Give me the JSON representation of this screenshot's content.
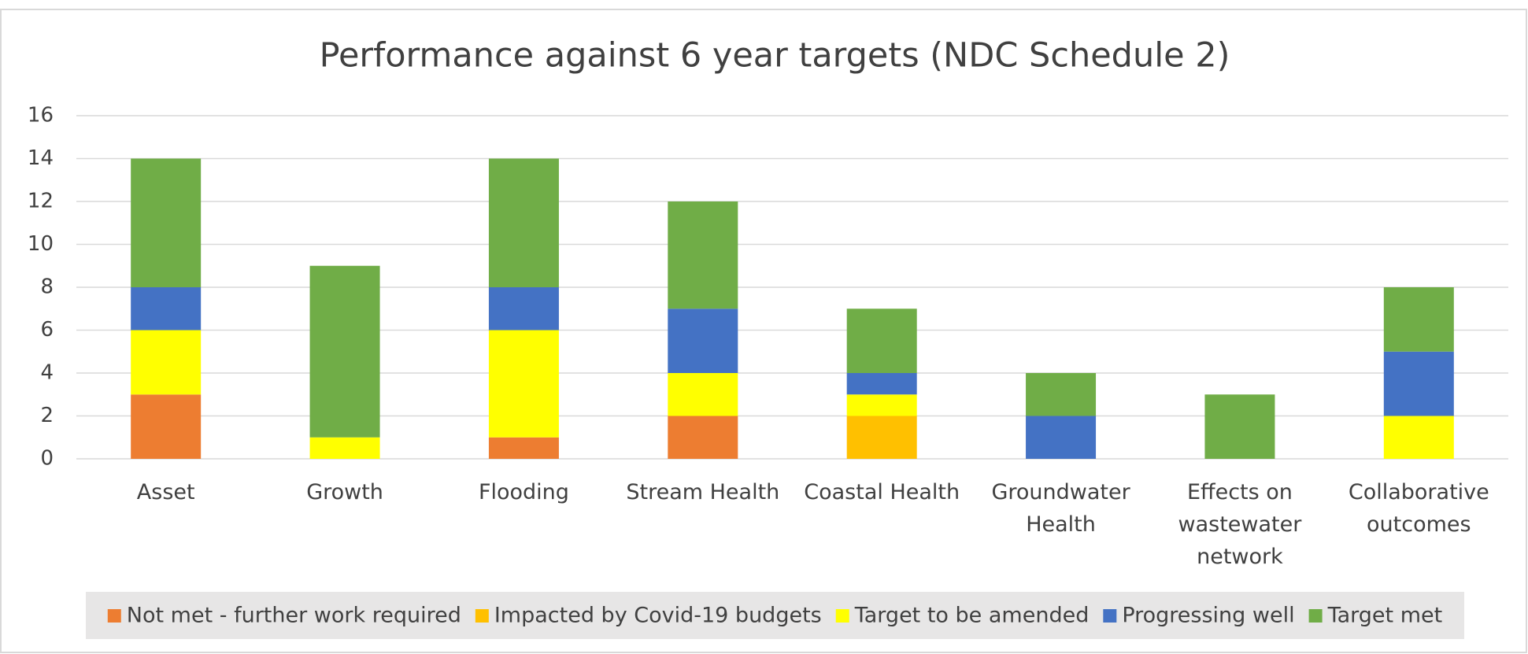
{
  "chart_data": {
    "type": "stacked_bar",
    "title": "Performance against 6 year targets (NDC Schedule 2)",
    "categories": [
      "Asset",
      "Growth",
      "Flooding",
      "Stream Health",
      "Coastal Health",
      "Groundwater Health",
      "Effects on wastewater network",
      "Collaborative outcomes"
    ],
    "series": [
      {
        "name": "Not met - further work required",
        "color": "#ed7d31",
        "values": [
          3,
          0,
          1,
          2,
          0,
          0,
          0,
          0
        ]
      },
      {
        "name": "Impacted by Covid-19 budgets",
        "color": "#ffc000",
        "values": [
          0,
          0,
          0,
          0,
          2,
          0,
          0,
          0
        ]
      },
      {
        "name": "Target to be amended",
        "color": "#ffff00",
        "values": [
          3,
          1,
          5,
          2,
          1,
          0,
          0,
          2
        ]
      },
      {
        "name": "Progressing well",
        "color": "#4472c4",
        "values": [
          2,
          0,
          2,
          3,
          1,
          2,
          0,
          3
        ]
      },
      {
        "name": "Target met",
        "color": "#70ad47",
        "values": [
          6,
          8,
          6,
          5,
          3,
          2,
          3,
          3
        ]
      }
    ],
    "ylim": [
      0,
      16
    ],
    "yticks": [
      0,
      2,
      4,
      6,
      8,
      10,
      12,
      14,
      16
    ],
    "grid": true,
    "legend": "bottom"
  }
}
